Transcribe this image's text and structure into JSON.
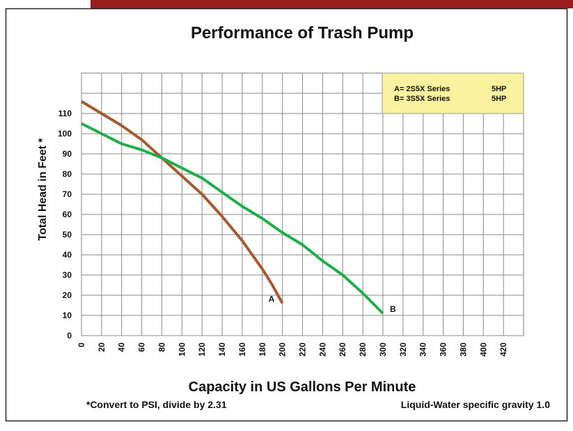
{
  "chart_data": {
    "type": "line",
    "title": "Performance of Trash Pump",
    "x_label": "Capacity in US Gallons Per Minute",
    "y_label": "Total Head in Feet *",
    "xlim": [
      0,
      440
    ],
    "xticks": [
      0,
      20,
      40,
      60,
      80,
      100,
      120,
      140,
      160,
      180,
      200,
      220,
      240,
      260,
      280,
      300,
      320,
      340,
      360,
      380,
      400,
      420
    ],
    "ylim": [
      0,
      130
    ],
    "yticks": [
      0,
      10,
      20,
      30,
      40,
      50,
      60,
      70,
      80,
      90,
      100,
      110
    ],
    "grid": true,
    "series": [
      {
        "name": "A",
        "color": "#a65a2e",
        "x": [
          0,
          20,
          40,
          60,
          80,
          100,
          120,
          140,
          160,
          180,
          190,
          200
        ],
        "values": [
          116,
          110,
          104,
          97,
          88,
          79,
          70,
          59,
          47,
          33,
          25,
          16
        ]
      },
      {
        "name": "B",
        "color": "#1fae4b",
        "x": [
          0,
          20,
          40,
          60,
          80,
          100,
          120,
          140,
          160,
          180,
          200,
          220,
          240,
          260,
          280,
          300
        ],
        "values": [
          105,
          100,
          95,
          92,
          88,
          83,
          78,
          71,
          64,
          58,
          51,
          45,
          37,
          30,
          21,
          11
        ]
      }
    ],
    "legend": {
      "position": "upper right",
      "color": "#fbf2a0",
      "entries": [
        {
          "label": "A= 2S5X Series",
          "power": "5HP"
        },
        {
          "label": "B= 3S5X Series",
          "power": "5HP"
        }
      ]
    },
    "footnotes": [
      "*Convert to PSI, divide by 2.31",
      "Liquid-Water specific gravity 1.0"
    ]
  }
}
